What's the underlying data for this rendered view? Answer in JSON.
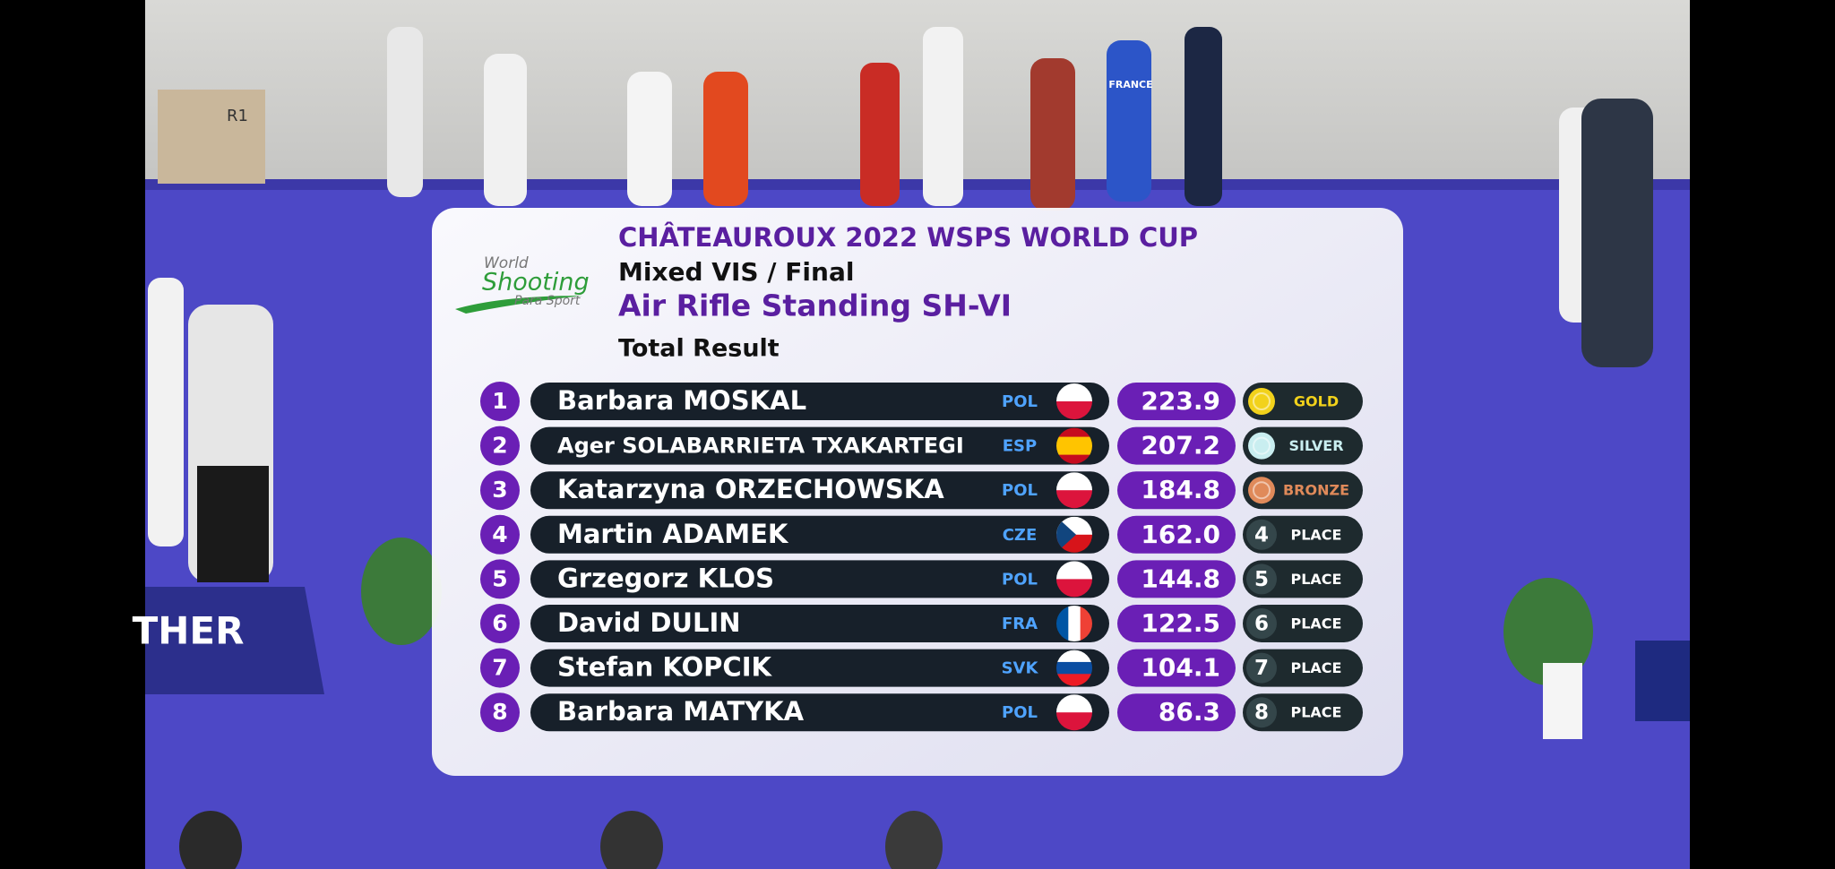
{
  "header": {
    "title": "CHÂTEAUROUX 2022 WSPS WORLD CUP",
    "event": "Mixed VIS / Final",
    "discipline": "Air Rifle Standing SH-VI",
    "stage": "Total Result"
  },
  "logo": {
    "line1": "World",
    "line2": "Shooting",
    "line3": "Para Sport"
  },
  "background": {
    "box_label": "R1",
    "banner": "THER",
    "shirt": "FRANCE"
  },
  "table": {
    "rows": [
      {
        "rank": 1,
        "name": "Barbara MOSKAL",
        "country": "POL",
        "score": "223.9",
        "medal": "GOLD",
        "medal_color": "#f2d21b",
        "flag_stripes": [
          "#ffffff",
          "#dc143c"
        ],
        "flag_direction": "h"
      },
      {
        "rank": 2,
        "name": "Ager SOLABARRIETA TXAKARTEGI",
        "country": "ESP",
        "score": "207.2",
        "medal": "SILVER",
        "medal_color": "#c9eef0",
        "flag_stripes": [
          "#c60b1e",
          "#ffc400",
          "#ffc400",
          "#c60b1e"
        ],
        "flag_direction": "h"
      },
      {
        "rank": 3,
        "name": "Katarzyna ORZECHOWSKA",
        "country": "POL",
        "score": "184.8",
        "medal": "BRONZE",
        "medal_color": "#e08a5a",
        "flag_stripes": [
          "#ffffff",
          "#dc143c"
        ],
        "flag_direction": "h"
      },
      {
        "rank": 4,
        "name": "Martin ADAMEK",
        "country": "CZE",
        "score": "162.0",
        "medal": "PLACE",
        "flag_stripes": [
          "#ffffff",
          "#d7141a"
        ],
        "flag_direction": "h",
        "flag_hoist": "#11457e"
      },
      {
        "rank": 5,
        "name": "Grzegorz KLOS",
        "country": "POL",
        "score": "144.8",
        "medal": "PLACE",
        "flag_stripes": [
          "#ffffff",
          "#dc143c"
        ],
        "flag_direction": "h"
      },
      {
        "rank": 6,
        "name": "David DULIN",
        "country": "FRA",
        "score": "122.5",
        "medal": "PLACE",
        "flag_stripes": [
          "#0055a4",
          "#ffffff",
          "#ef4135"
        ],
        "flag_direction": "v"
      },
      {
        "rank": 7,
        "name": "Stefan KOPCIK",
        "country": "SVK",
        "score": "104.1",
        "medal": "PLACE",
        "flag_stripes": [
          "#ffffff",
          "#0b4ea2",
          "#ee1c25"
        ],
        "flag_direction": "h"
      },
      {
        "rank": 8,
        "name": "Barbara MATYKA",
        "country": "POL",
        "score": "86.3",
        "medal": "PLACE",
        "flag_stripes": [
          "#ffffff",
          "#dc143c"
        ],
        "flag_direction": "h"
      }
    ]
  }
}
